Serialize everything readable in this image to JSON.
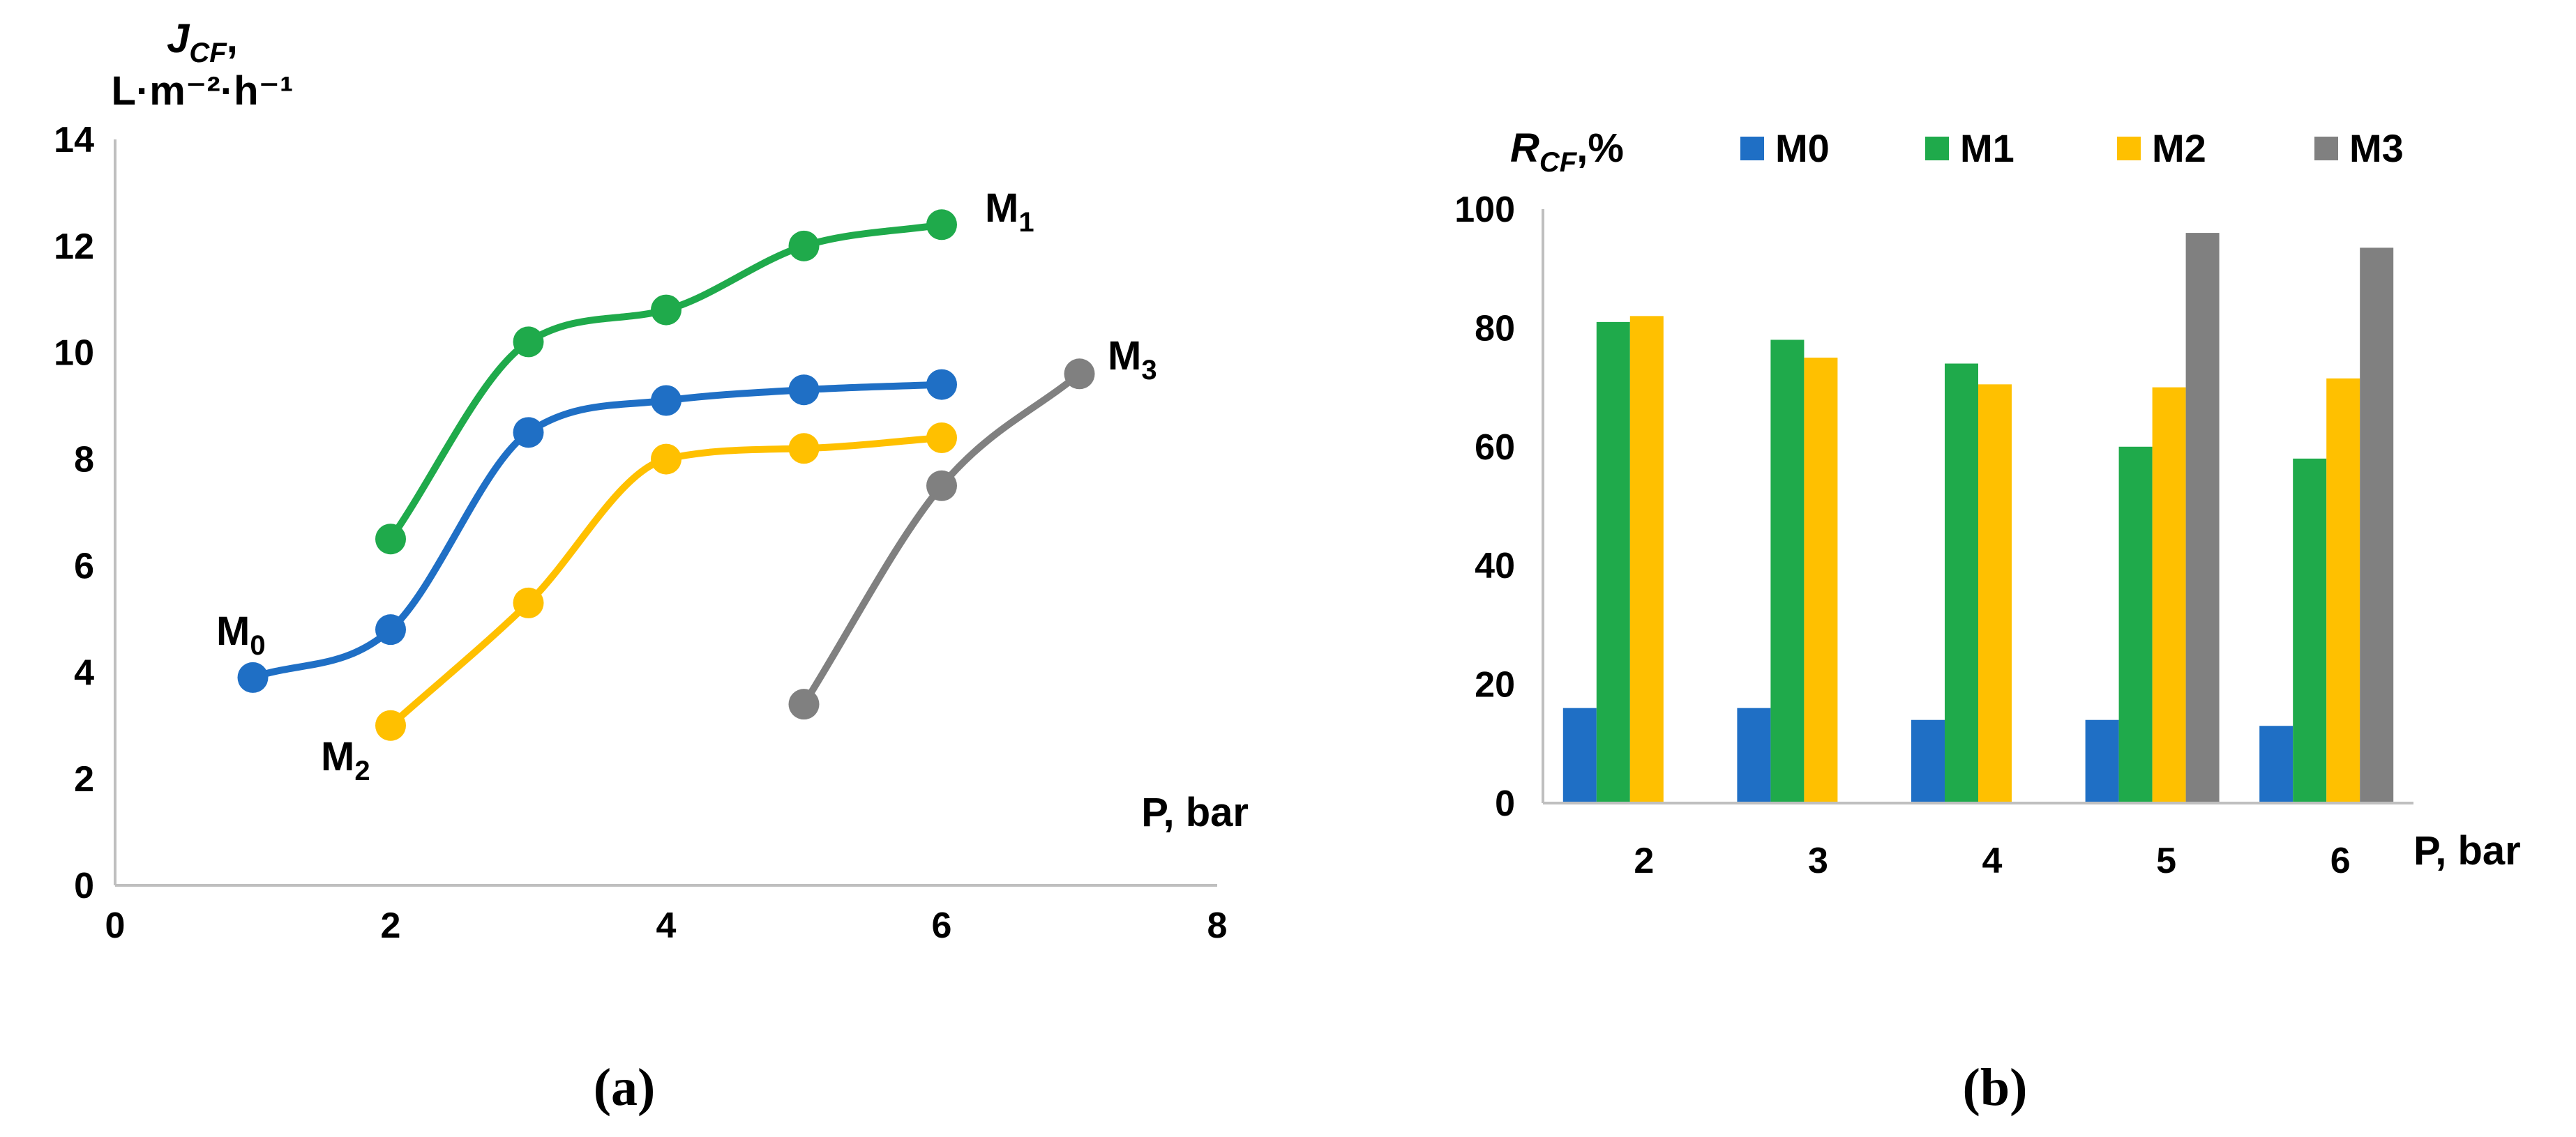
{
  "chart_data": [
    {
      "type": "line",
      "panel_label": "(a)",
      "title": "",
      "ylabel": {
        "main": "J",
        "sub": "CF",
        "suffix": ",",
        "unit_line": "L·m⁻²·h⁻¹"
      },
      "xlabel": "P, bar",
      "xlim": [
        0,
        8
      ],
      "ylim": [
        0,
        14
      ],
      "x_ticks": [
        "0",
        "2",
        "4",
        "6",
        "8"
      ],
      "y_ticks": [
        "0",
        "2",
        "4",
        "6",
        "8",
        "10",
        "12",
        "14"
      ],
      "grid": false,
      "series": [
        {
          "name": "M0",
          "label_main": "M",
          "label_sub": "0",
          "color": "#1f6fc5",
          "x": [
            1,
            2,
            3,
            4,
            5,
            6
          ],
          "y": [
            3.9,
            4.8,
            8.5,
            9.1,
            9.3,
            9.4
          ]
        },
        {
          "name": "M1",
          "label_main": "M",
          "label_sub": "1",
          "color": "#1faa4b",
          "x": [
            2,
            3,
            4,
            5,
            6
          ],
          "y": [
            6.5,
            10.2,
            10.8,
            12.0,
            12.4
          ]
        },
        {
          "name": "M2",
          "label_main": "M",
          "label_sub": "2",
          "color": "#ffc000",
          "x": [
            2,
            3,
            4,
            5,
            6
          ],
          "y": [
            3.0,
            5.3,
            8.0,
            8.2,
            8.4
          ]
        },
        {
          "name": "M3",
          "label_main": "M",
          "label_sub": "3",
          "color": "#808080",
          "x": [
            5,
            6,
            7
          ],
          "y": [
            3.4,
            7.5,
            9.6
          ]
        }
      ]
    },
    {
      "type": "bar",
      "panel_label": "(b)",
      "title": "",
      "ylabel": {
        "main": "R",
        "sub": "CF",
        "suffix": ",%"
      },
      "xlabel": "P, bar",
      "ylim": [
        0,
        100
      ],
      "y_ticks": [
        "0",
        "20",
        "40",
        "60",
        "80",
        "100"
      ],
      "categories": [
        "2",
        "3",
        "4",
        "5",
        "6"
      ],
      "legend_position": "top",
      "grid": false,
      "series": [
        {
          "name": "M0",
          "color": "#1f6fc5",
          "values": [
            16,
            16,
            14,
            14,
            13
          ]
        },
        {
          "name": "M1",
          "color": "#1faa4b",
          "values": [
            81,
            78,
            74,
            60,
            58
          ]
        },
        {
          "name": "M2",
          "color": "#ffc000",
          "values": [
            82,
            75,
            70.5,
            70,
            71.5
          ]
        },
        {
          "name": "M3",
          "color": "#808080",
          "values": [
            null,
            null,
            null,
            96,
            93.5
          ]
        }
      ]
    }
  ]
}
